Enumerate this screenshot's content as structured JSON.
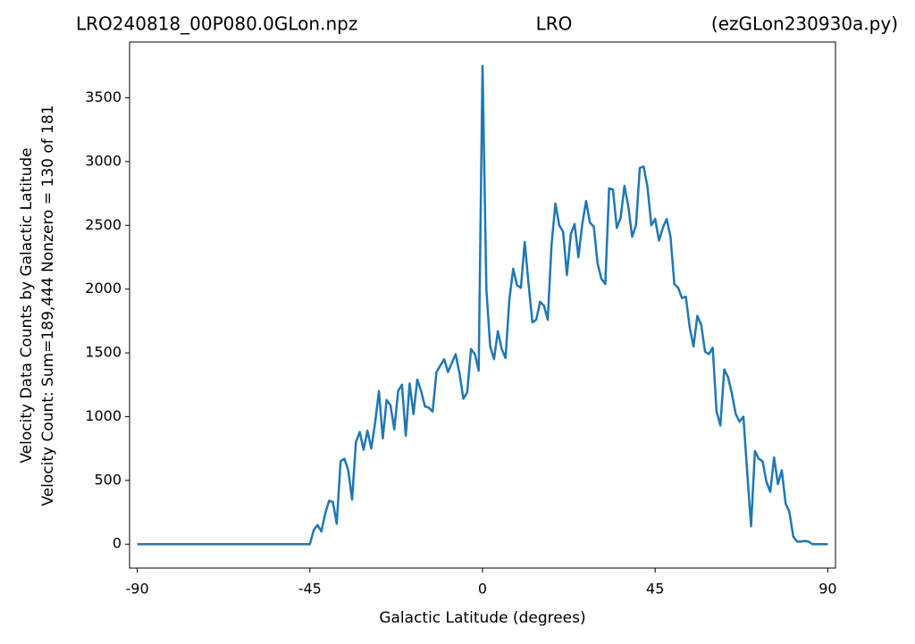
{
  "chart_data": {
    "type": "line",
    "title": "LRO240818_00P080.0GLon.npz",
    "subtitle": "LRO",
    "annotation": "(ezGLon230930a.py)",
    "x_label": "Galactic Latitude (degrees)",
    "y_label": [
      "Velocity Data Counts by Galactic Latitude",
      "Velocity Count: Sum=189,444 Nonzero = 130 of 181"
    ],
    "x": [
      -90,
      -89,
      -88,
      -87,
      -86,
      -85,
      -84,
      -83,
      -82,
      -81,
      -80,
      -79,
      -78,
      -77,
      -76,
      -75,
      -74,
      -73,
      -72,
      -71,
      -70,
      -69,
      -68,
      -67,
      -66,
      -65,
      -64,
      -63,
      -62,
      -61,
      -60,
      -59,
      -58,
      -57,
      -56,
      -55,
      -54,
      -53,
      -52,
      -51,
      -50,
      -49,
      -48,
      -47,
      -46,
      -45,
      -44,
      -43,
      -42,
      -41,
      -40,
      -39,
      -38,
      -37,
      -36,
      -35,
      -34,
      -33,
      -32,
      -31,
      -30,
      -29,
      -28,
      -27,
      -26,
      -25,
      -24,
      -23,
      -22,
      -21,
      -20,
      -19,
      -18,
      -17,
      -16,
      -15,
      -14,
      -13,
      -12,
      -11,
      -10,
      -9,
      -8,
      -7,
      -6,
      -5,
      -4,
      -3,
      -2,
      -1,
      0,
      1,
      2,
      3,
      4,
      5,
      6,
      7,
      8,
      9,
      10,
      11,
      12,
      13,
      14,
      15,
      16,
      17,
      18,
      19,
      20,
      21,
      22,
      23,
      24,
      25,
      26,
      27,
      28,
      29,
      30,
      31,
      32,
      33,
      34,
      35,
      36,
      37,
      38,
      39,
      40,
      41,
      42,
      43,
      44,
      45,
      46,
      47,
      48,
      49,
      50,
      51,
      52,
      53,
      54,
      55,
      56,
      57,
      58,
      59,
      60,
      61,
      62,
      63,
      64,
      65,
      66,
      67,
      68,
      69,
      70,
      71,
      72,
      73,
      74,
      75,
      76,
      77,
      78,
      79,
      80,
      81,
      82,
      83,
      84,
      85,
      86,
      87,
      88,
      89,
      90
    ],
    "series": [
      {
        "color": "#1f77b4",
        "values": [
          0,
          0,
          0,
          0,
          0,
          0,
          0,
          0,
          0,
          0,
          0,
          0,
          0,
          0,
          0,
          0,
          0,
          0,
          0,
          0,
          0,
          0,
          0,
          0,
          0,
          0,
          0,
          0,
          0,
          0,
          0,
          0,
          0,
          0,
          0,
          0,
          0,
          0,
          0,
          0,
          0,
          0,
          0,
          0,
          0,
          0,
          110,
          150,
          100,
          240,
          340,
          330,
          160,
          650,
          670,
          580,
          350,
          800,
          880,
          740,
          890,
          750,
          950,
          1200,
          830,
          1130,
          1090,
          900,
          1200,
          1250,
          850,
          1260,
          1020,
          1290,
          1200,
          1080,
          1070,
          1040,
          1350,
          1400,
          1450,
          1350,
          1420,
          1490,
          1340,
          1140,
          1190,
          1530,
          1490,
          1360,
          3750,
          2000,
          1550,
          1450,
          1670,
          1530,
          1460,
          1920,
          2160,
          2030,
          2010,
          2370,
          2040,
          1740,
          1760,
          1900,
          1870,
          1760,
          2350,
          2670,
          2500,
          2450,
          2110,
          2430,
          2510,
          2250,
          2510,
          2690,
          2520,
          2490,
          2200,
          2080,
          2040,
          2790,
          2780,
          2480,
          2560,
          2810,
          2650,
          2410,
          2500,
          2950,
          2960,
          2800,
          2500,
          2550,
          2380,
          2480,
          2550,
          2410,
          2040,
          2010,
          1930,
          1940,
          1700,
          1550,
          1790,
          1720,
          1510,
          1490,
          1540,
          1040,
          930,
          1370,
          1310,
          1180,
          1020,
          960,
          1000,
          560,
          140,
          730,
          670,
          650,
          490,
          410,
          680,
          470,
          580,
          320,
          250,
          60,
          20,
          20,
          25,
          20,
          0,
          0,
          0,
          0,
          0
        ]
      }
    ],
    "xlim": [
      -92,
      92
    ],
    "ylim": [
      -187.5,
      3937.5
    ],
    "xticks": [
      -90,
      -45,
      0,
      45,
      90
    ],
    "yticks": [
      0,
      500,
      1000,
      1500,
      2000,
      2500,
      3000,
      3500
    ]
  }
}
